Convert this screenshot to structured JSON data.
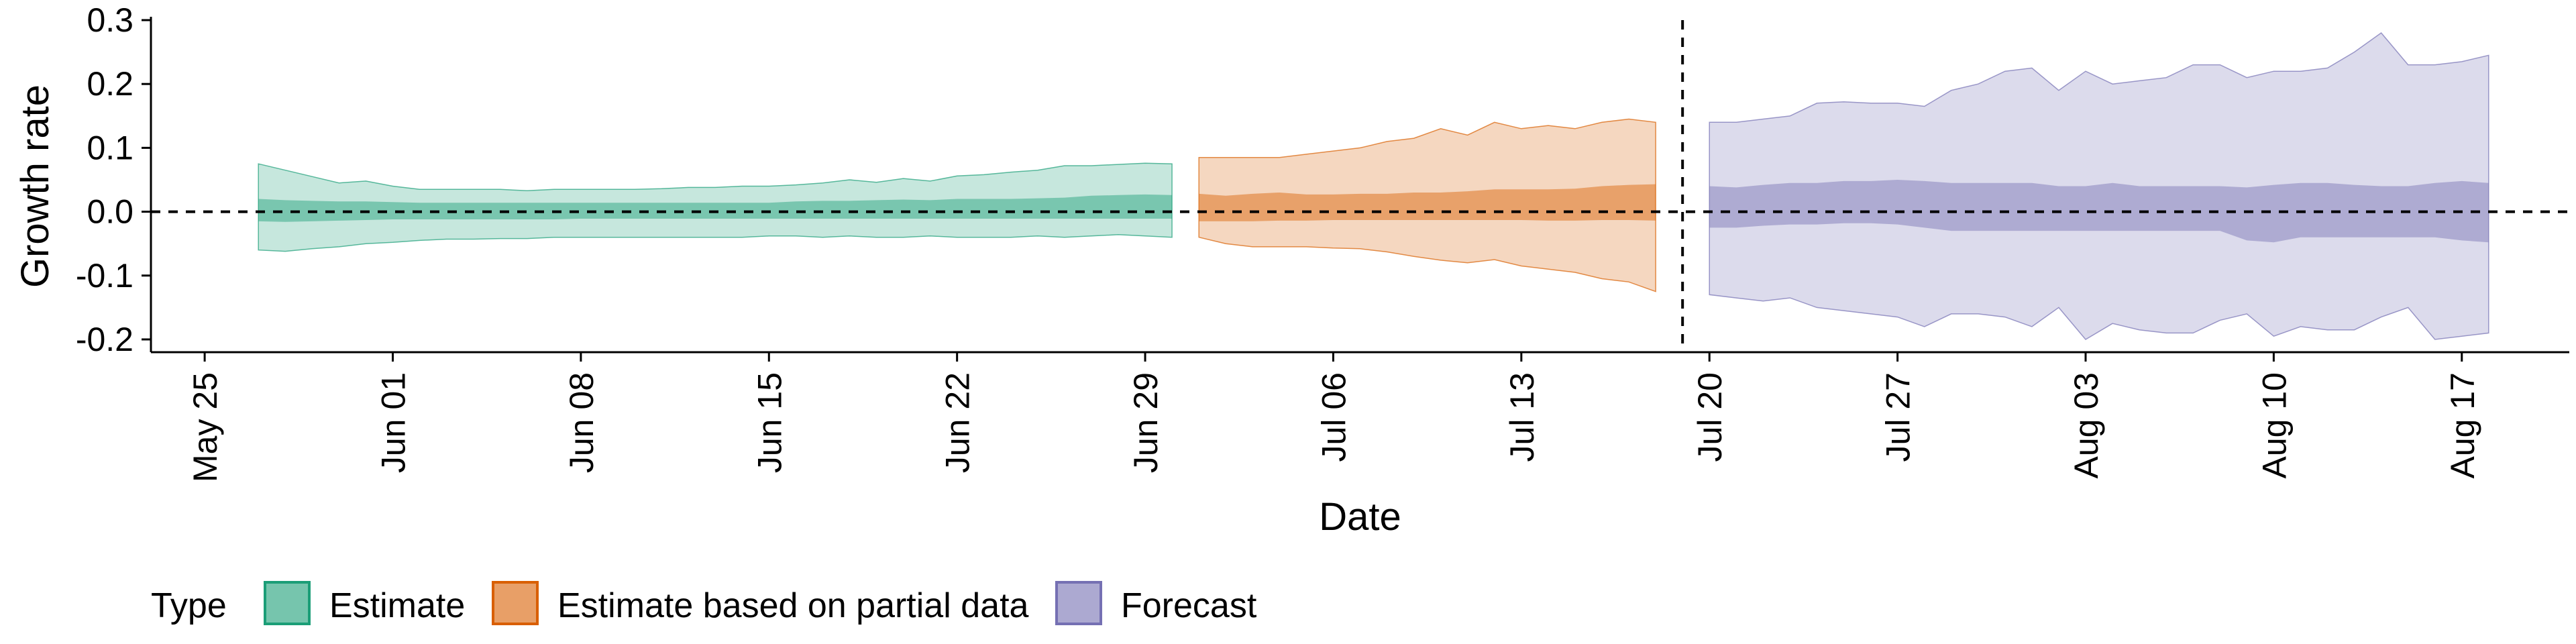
{
  "chart_data": {
    "type": "area",
    "xlabel": "Date",
    "ylabel": "Growth rate",
    "x_ticks": [
      "May 25",
      "Jun 01",
      "Jun 08",
      "Jun 15",
      "Jun 22",
      "Jun 29",
      "Jul 06",
      "Jul 13",
      "Jul 20",
      "Jul 27",
      "Aug 03",
      "Aug 10",
      "Aug 17"
    ],
    "y_ticks": [
      "0.3",
      "0.2",
      "0.1",
      "0.0",
      "-0.1",
      "-0.2"
    ],
    "y_tick_values": [
      0.3,
      0.2,
      0.1,
      0.0,
      -0.1,
      -0.2
    ],
    "ylim": [
      -0.22,
      0.3
    ],
    "xlim": [
      "2020-05-23",
      "2020-08-21"
    ],
    "hline_y": 0.0,
    "vline_x": "2020-07-19",
    "grid": false,
    "legend": {
      "title": "Type",
      "position": "bottom",
      "entries": [
        "Estimate",
        "Estimate based on partial data",
        "Forecast"
      ]
    },
    "colors": {
      "Estimate": "#1b9e77",
      "Estimate based on partial data": "#d95f02",
      "Forecast": "#7570b3"
    },
    "series": [
      {
        "name": "Estimate",
        "dates": [
          "2020-05-27",
          "2020-05-28",
          "2020-05-29",
          "2020-05-30",
          "2020-05-31",
          "2020-06-01",
          "2020-06-02",
          "2020-06-03",
          "2020-06-04",
          "2020-06-05",
          "2020-06-06",
          "2020-06-07",
          "2020-06-08",
          "2020-06-09",
          "2020-06-10",
          "2020-06-11",
          "2020-06-12",
          "2020-06-13",
          "2020-06-14",
          "2020-06-15",
          "2020-06-16",
          "2020-06-17",
          "2020-06-18",
          "2020-06-19",
          "2020-06-20",
          "2020-06-21",
          "2020-06-22",
          "2020-06-23",
          "2020-06-24",
          "2020-06-25",
          "2020-06-26",
          "2020-06-27",
          "2020-06-28",
          "2020-06-29",
          "2020-06-30"
        ],
        "lower_90": [
          -0.06,
          -0.062,
          -0.058,
          -0.055,
          -0.05,
          -0.048,
          -0.045,
          -0.043,
          -0.043,
          -0.042,
          -0.042,
          -0.04,
          -0.04,
          -0.04,
          -0.04,
          -0.04,
          -0.04,
          -0.04,
          -0.04,
          -0.038,
          -0.038,
          -0.04,
          -0.038,
          -0.04,
          -0.04,
          -0.038,
          -0.04,
          -0.04,
          -0.04,
          -0.038,
          -0.04,
          -0.038,
          -0.036,
          -0.038,
          -0.04
        ],
        "upper_90": [
          0.075,
          0.065,
          0.055,
          0.045,
          0.048,
          0.04,
          0.035,
          0.035,
          0.035,
          0.035,
          0.033,
          0.035,
          0.035,
          0.035,
          0.035,
          0.036,
          0.038,
          0.038,
          0.04,
          0.04,
          0.042,
          0.045,
          0.05,
          0.046,
          0.052,
          0.048,
          0.056,
          0.058,
          0.062,
          0.065,
          0.072,
          0.072,
          0.074,
          0.076,
          0.075
        ],
        "lower_50": [
          -0.015,
          -0.016,
          -0.015,
          -0.014,
          -0.013,
          -0.012,
          -0.012,
          -0.012,
          -0.012,
          -0.012,
          -0.012,
          -0.012,
          -0.011,
          -0.011,
          -0.011,
          -0.011,
          -0.011,
          -0.011,
          -0.011,
          -0.011,
          -0.011,
          -0.011,
          -0.011,
          -0.011,
          -0.011,
          -0.011,
          -0.011,
          -0.011,
          -0.011,
          -0.011,
          -0.011,
          -0.011,
          -0.011,
          -0.011,
          -0.011
        ],
        "upper_50": [
          0.02,
          0.018,
          0.017,
          0.016,
          0.016,
          0.015,
          0.014,
          0.014,
          0.014,
          0.014,
          0.014,
          0.014,
          0.014,
          0.014,
          0.014,
          0.014,
          0.014,
          0.014,
          0.014,
          0.014,
          0.016,
          0.017,
          0.017,
          0.018,
          0.019,
          0.018,
          0.02,
          0.02,
          0.02,
          0.021,
          0.022,
          0.025,
          0.026,
          0.027,
          0.026
        ]
      },
      {
        "name": "Estimate based on partial data",
        "dates": [
          "2020-07-01",
          "2020-07-02",
          "2020-07-03",
          "2020-07-04",
          "2020-07-05",
          "2020-07-06",
          "2020-07-07",
          "2020-07-08",
          "2020-07-09",
          "2020-07-10",
          "2020-07-11",
          "2020-07-12",
          "2020-07-13",
          "2020-07-14",
          "2020-07-15",
          "2020-07-16",
          "2020-07-17",
          "2020-07-18"
        ],
        "lower_90": [
          -0.04,
          -0.05,
          -0.055,
          -0.055,
          -0.055,
          -0.057,
          -0.058,
          -0.063,
          -0.07,
          -0.076,
          -0.08,
          -0.075,
          -0.085,
          -0.09,
          -0.095,
          -0.105,
          -0.11,
          -0.125
        ],
        "upper_90": [
          0.085,
          0.085,
          0.085,
          0.085,
          0.09,
          0.095,
          0.1,
          0.11,
          0.115,
          0.13,
          0.12,
          0.14,
          0.13,
          0.135,
          0.13,
          0.14,
          0.145,
          0.14
        ],
        "lower_50": [
          -0.015,
          -0.015,
          -0.015,
          -0.014,
          -0.014,
          -0.013,
          -0.013,
          -0.013,
          -0.013,
          -0.013,
          -0.013,
          -0.013,
          -0.013,
          -0.014,
          -0.014,
          -0.013,
          -0.013,
          -0.014
        ],
        "upper_50": [
          0.028,
          0.025,
          0.028,
          0.03,
          0.027,
          0.027,
          0.028,
          0.028,
          0.03,
          0.03,
          0.032,
          0.035,
          0.035,
          0.035,
          0.036,
          0.04,
          0.042,
          0.043
        ]
      },
      {
        "name": "Forecast",
        "dates": [
          "2020-07-20",
          "2020-07-21",
          "2020-07-22",
          "2020-07-23",
          "2020-07-24",
          "2020-07-25",
          "2020-07-26",
          "2020-07-27",
          "2020-07-28",
          "2020-07-29",
          "2020-07-30",
          "2020-07-31",
          "2020-08-01",
          "2020-08-02",
          "2020-08-03",
          "2020-08-04",
          "2020-08-05",
          "2020-08-06",
          "2020-08-07",
          "2020-08-08",
          "2020-08-09",
          "2020-08-10",
          "2020-08-11",
          "2020-08-12",
          "2020-08-13",
          "2020-08-14",
          "2020-08-15",
          "2020-08-16",
          "2020-08-17",
          "2020-08-18"
        ],
        "lower_90": [
          -0.13,
          -0.135,
          -0.14,
          -0.135,
          -0.15,
          -0.155,
          -0.16,
          -0.165,
          -0.18,
          -0.16,
          -0.16,
          -0.165,
          -0.18,
          -0.15,
          -0.2,
          -0.175,
          -0.185,
          -0.19,
          -0.19,
          -0.17,
          -0.16,
          -0.195,
          -0.18,
          -0.185,
          -0.185,
          -0.165,
          -0.15,
          -0.2,
          -0.195,
          -0.19
        ],
        "upper_90": [
          0.14,
          0.14,
          0.145,
          0.15,
          0.17,
          0.172,
          0.17,
          0.17,
          0.165,
          0.19,
          0.2,
          0.22,
          0.225,
          0.19,
          0.22,
          0.2,
          0.205,
          0.21,
          0.23,
          0.23,
          0.21,
          0.22,
          0.22,
          0.225,
          0.25,
          0.28,
          0.23,
          0.23,
          0.235,
          0.245
        ],
        "lower_50": [
          -0.025,
          -0.025,
          -0.022,
          -0.02,
          -0.02,
          -0.018,
          -0.018,
          -0.02,
          -0.025,
          -0.03,
          -0.03,
          -0.03,
          -0.03,
          -0.03,
          -0.03,
          -0.03,
          -0.03,
          -0.03,
          -0.03,
          -0.03,
          -0.045,
          -0.048,
          -0.04,
          -0.04,
          -0.04,
          -0.04,
          -0.04,
          -0.04,
          -0.045,
          -0.048
        ],
        "upper_50": [
          0.04,
          0.038,
          0.042,
          0.045,
          0.045,
          0.048,
          0.048,
          0.05,
          0.048,
          0.045,
          0.045,
          0.045,
          0.045,
          0.04,
          0.04,
          0.045,
          0.04,
          0.04,
          0.04,
          0.04,
          0.038,
          0.042,
          0.045,
          0.045,
          0.042,
          0.04,
          0.04,
          0.045,
          0.048,
          0.045
        ]
      }
    ]
  }
}
